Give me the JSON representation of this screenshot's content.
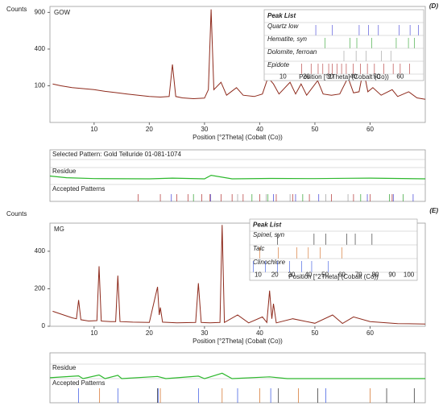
{
  "chart_data": [
    {
      "type": "line",
      "panel_label": "(D)",
      "sample": "GOW",
      "ylabel": "Counts",
      "xlabel": "Position [°2Theta] (Cobalt (Co))",
      "scale": "sqrt",
      "color": "#8e2a1c",
      "xlim": [
        2,
        70
      ],
      "xticks": [
        10,
        20,
        30,
        40,
        50,
        60
      ],
      "ylim": [
        0,
        1000
      ],
      "yticks": [
        100,
        400,
        900
      ],
      "x": [
        2.5,
        4,
        6,
        8,
        10,
        12,
        14,
        16,
        18,
        20,
        22,
        23.6,
        24.2,
        24.8,
        26,
        28,
        30,
        30.7,
        31.2,
        31.7,
        33,
        34,
        35.8,
        37,
        39,
        40.5,
        41.5,
        42.5,
        43.5,
        45.5,
        46.5,
        47.5,
        48.5,
        50.5,
        51.5,
        53,
        54.5,
        56,
        57,
        58,
        58.8,
        59.6,
        60.5,
        62,
        64,
        65,
        67,
        68.5,
        70
      ],
      "values": [
        110,
        100,
        90,
        85,
        80,
        72,
        66,
        60,
        55,
        50,
        48,
        50,
        250,
        50,
        45,
        42,
        44,
        80,
        950,
        80,
        120,
        55,
        90,
        55,
        50,
        60,
        150,
        110,
        60,
        120,
        60,
        110,
        55,
        130,
        60,
        55,
        60,
        150,
        65,
        70,
        210,
        70,
        90,
        55,
        80,
        50,
        70,
        45,
        40
      ],
      "peak_list": {
        "title": "Peak List",
        "xlabel": "Position [°2Theta] (Cobalt (Co))",
        "xlim": [
          2,
          70
        ],
        "xticks": [
          10,
          20,
          30,
          40,
          50,
          60
        ],
        "phases": [
          {
            "name": "Quartz low",
            "color": "#3b3bd6",
            "peaks": [
              24,
              31.1,
              42.5,
              46.5,
              50.7,
              59.5,
              64.2,
              67.8
            ]
          },
          {
            "name": "Hematite, syn",
            "color": "#2ca02c",
            "peaks": [
              28,
              38.6,
              41.5,
              47.8,
              58.3,
              63.5,
              66
            ]
          },
          {
            "name": "Dolomite, ferroan",
            "color": "#9a9a9a",
            "peaks": [
              36,
              41.2,
              45.5,
              52,
              56
            ]
          },
          {
            "name": "Epidote",
            "color": "#b03030",
            "peaks": [
              18,
              22,
              25,
              27,
              29.5,
              31,
              33,
              35,
              37,
              40,
              43,
              46,
              49,
              53,
              57,
              60,
              64
            ]
          }
        ]
      },
      "selected_pattern": "Selected Pattern: Gold Telluride 01-081-1074",
      "residue_label": "Residue",
      "accepted_label": "Accepted Patterns",
      "residue": {
        "color": "#2db82d",
        "ylim": [
          -40,
          40
        ],
        "x": [
          2,
          5,
          10,
          20,
          24.2,
          30,
          31.2,
          35,
          42,
          50,
          56,
          60,
          70
        ],
        "values": [
          20,
          8,
          2,
          0,
          5,
          0,
          25,
          0,
          3,
          2,
          4,
          5,
          0
        ]
      }
    },
    {
      "type": "line",
      "panel_label": "(E)",
      "sample": "MG",
      "ylabel": "Counts",
      "xlabel": "Position [°2Theta] (Cobalt (Co))",
      "scale": "linear",
      "color": "#8e2a1c",
      "xlim": [
        2,
        70
      ],
      "xticks": [
        10,
        20,
        30,
        40,
        50,
        60
      ],
      "ylim": [
        0,
        550
      ],
      "yticks": [
        0,
        200,
        400
      ],
      "x": [
        2.5,
        4,
        6,
        6.8,
        7.2,
        7.6,
        9,
        10.5,
        10.9,
        11.3,
        13,
        13.9,
        14.3,
        14.7,
        17,
        20,
        21.5,
        21.8,
        22,
        22.4,
        25,
        28.4,
        28.9,
        29.4,
        31,
        32.8,
        33.2,
        33.6,
        36,
        38,
        40.5,
        41.3,
        41.8,
        42.2,
        42.5,
        43,
        46,
        50,
        53.2,
        55,
        57,
        60,
        65,
        70
      ],
      "values": [
        80,
        65,
        45,
        40,
        140,
        35,
        28,
        30,
        320,
        28,
        25,
        25,
        270,
        25,
        22,
        20,
        210,
        60,
        100,
        22,
        18,
        20,
        230,
        20,
        18,
        20,
        540,
        20,
        60,
        18,
        50,
        20,
        190,
        40,
        120,
        18,
        40,
        16,
        60,
        15,
        50,
        25,
        14,
        12
      ],
      "peak_list": {
        "title": "Peak List",
        "xlabel": "Position [°2Theta] (Cobalt (Co))",
        "xlim": [
          5,
          105
        ],
        "xticks": [
          10,
          20,
          30,
          40,
          50,
          60,
          70,
          80,
          90,
          100
        ],
        "phases": [
          {
            "name": "Spinel, syn",
            "color": "#222222",
            "peaks": [
              21.5,
              43.4,
              50.5,
              63,
              68,
              78
            ]
          },
          {
            "name": "Talc",
            "color": "#d2691e",
            "peaks": [
              11,
              22,
              33.2,
              40,
              47,
              60
            ]
          },
          {
            "name": "Clinochlore",
            "color": "#3050e0",
            "peaks": [
              7.2,
              14.3,
              21.6,
              28.9,
              36,
              42,
              52
            ]
          }
        ]
      },
      "residue_label": "Residue",
      "accepted_label": "Accepted Patterns",
      "residue": {
        "color": "#2db82d",
        "ylim": [
          -40,
          40
        ],
        "x": [
          2,
          7.2,
          8,
          10.9,
          12,
          14.3,
          15,
          21.5,
          23,
          28.9,
          30,
          33.2,
          35,
          41.8,
          45,
          70
        ],
        "values": [
          5,
          15,
          0,
          20,
          0,
          18,
          0,
          12,
          0,
          14,
          0,
          30,
          0,
          10,
          0,
          0
        ]
      }
    }
  ]
}
